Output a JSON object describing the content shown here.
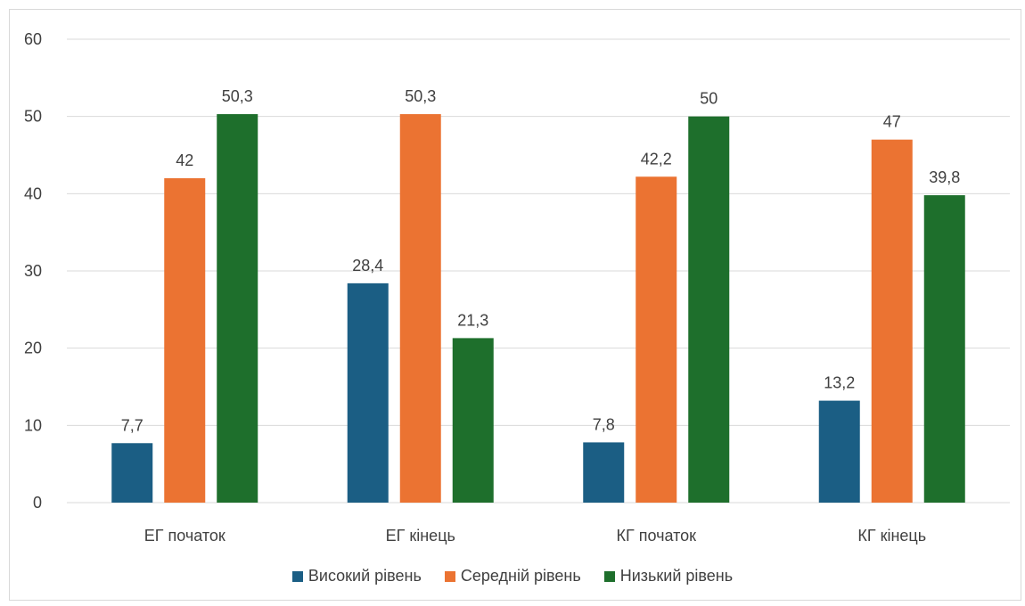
{
  "chart_data": {
    "type": "bar",
    "title": "",
    "xlabel": "",
    "ylabel": "",
    "categories": [
      "ЕГ початок",
      "ЕГ кінець",
      "КГ початок",
      "КГ кінець"
    ],
    "ylim": [
      0,
      60
    ],
    "yticks": [
      0,
      10,
      20,
      30,
      40,
      50,
      60
    ],
    "grid": true,
    "legend_position": "bottom",
    "series": [
      {
        "name": "Високий рівень",
        "color": "#1b5e84",
        "values": [
          7.7,
          28.4,
          7.8,
          13.2
        ],
        "labels": [
          "7,7",
          "28,4",
          "7,8",
          "13,2"
        ]
      },
      {
        "name": "Середній рівень",
        "color": "#eb7332",
        "values": [
          42,
          50.3,
          42.2,
          47
        ],
        "labels": [
          "42",
          "50,3",
          "42,2",
          "47"
        ]
      },
      {
        "name": "Низький рівень",
        "color": "#1e6f2c",
        "values": [
          50.3,
          21.3,
          50,
          39.8
        ],
        "labels": [
          "50,3",
          "21,3",
          "50",
          "39,8"
        ]
      }
    ]
  }
}
